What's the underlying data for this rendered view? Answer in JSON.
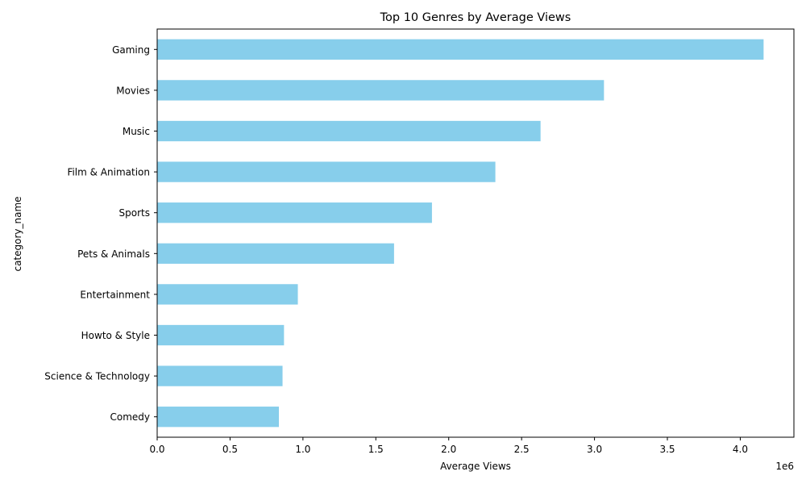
{
  "chart_data": {
    "type": "bar",
    "orientation": "horizontal",
    "title": "Top 10 Genres by Average Views",
    "xlabel": "Average Views",
    "ylabel": "category_name",
    "x_offset_text": "1e6",
    "categories": [
      "Gaming",
      "Movies",
      "Music",
      "Film & Animation",
      "Sports",
      "Pets & Animals",
      "Entertainment",
      "Howto & Style",
      "Science & Technology",
      "Comedy"
    ],
    "values": [
      4160000,
      3065000,
      2630000,
      2320000,
      1885000,
      1625000,
      965000,
      870000,
      860000,
      835000
    ],
    "xlim": [
      0,
      4368000
    ],
    "xticks": [
      0,
      500000,
      1000000,
      1500000,
      2000000,
      2500000,
      3000000,
      3500000,
      4000000
    ],
    "xtick_labels": [
      "0.0",
      "0.5",
      "1.0",
      "1.5",
      "2.0",
      "2.5",
      "3.0",
      "3.5",
      "4.0"
    ],
    "bar_color": "#87ceeb",
    "grid": false,
    "legend": "none"
  }
}
